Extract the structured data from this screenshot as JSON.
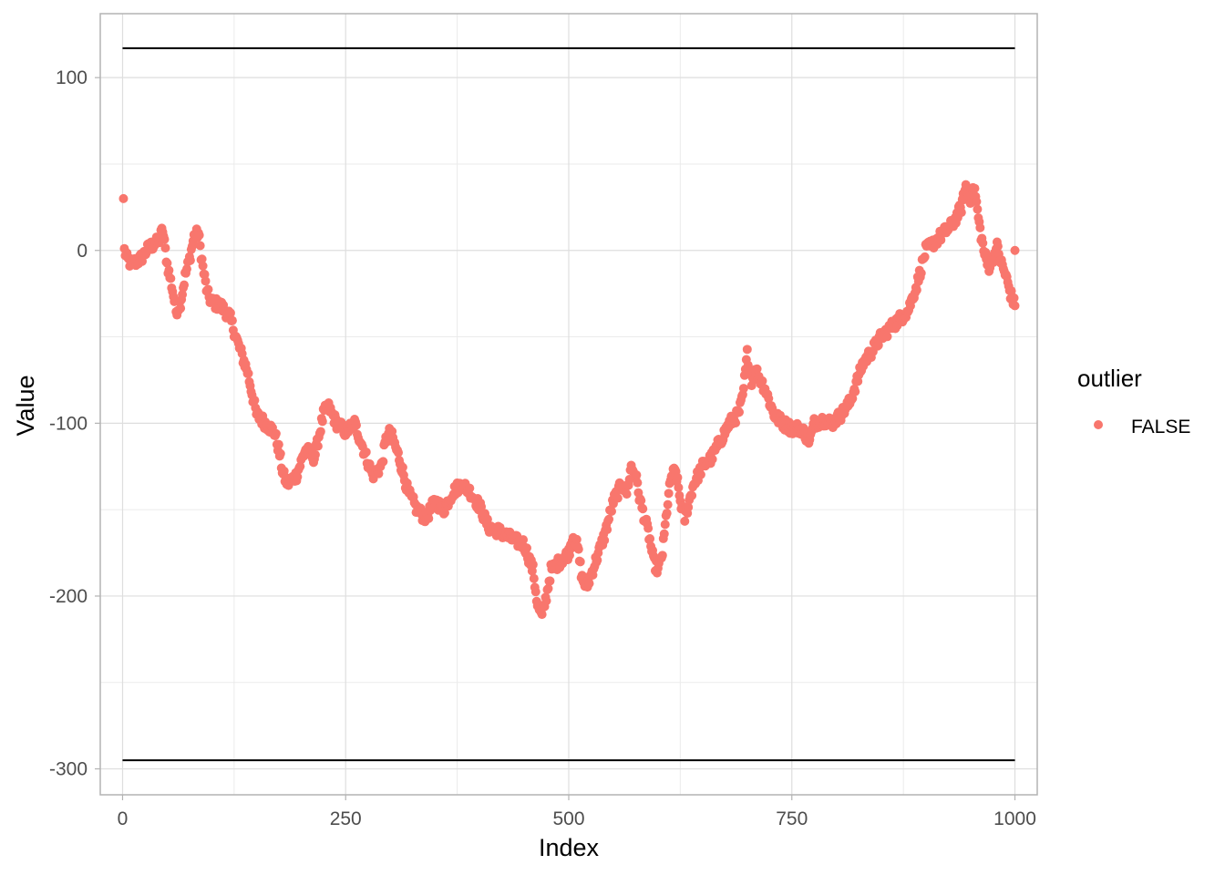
{
  "chart_data": {
    "type": "scatter",
    "xlabel": "Index",
    "ylabel": "Value",
    "xlim": [
      -25,
      1025
    ],
    "ylim": [
      -315,
      137
    ],
    "x_ticks": [
      0,
      250,
      500,
      750,
      1000
    ],
    "x_tick_labels": [
      "0",
      "250",
      "500",
      "750",
      "1000"
    ],
    "y_ticks": [
      -300,
      -200,
      -100,
      0,
      100
    ],
    "y_tick_labels": [
      "-300",
      "-200",
      "-100",
      "0",
      "100"
    ],
    "grid": true,
    "legend": {
      "title": "outlier",
      "position": "right",
      "entries": [
        {
          "label": "FALSE",
          "color": "#f8766d"
        }
      ]
    },
    "reference_lines": [
      {
        "y": 117,
        "x_range": [
          0,
          1000
        ],
        "color": "#000000"
      },
      {
        "y": -295,
        "x_range": [
          0,
          1000
        ],
        "color": "#000000"
      }
    ],
    "series": [
      {
        "name": "FALSE",
        "color": "#f8766d",
        "shape": "circle",
        "anchors": [
          [
            1,
            30
          ],
          [
            2,
            0
          ],
          [
            5,
            -5
          ],
          [
            10,
            -8
          ],
          [
            20,
            -5
          ],
          [
            30,
            2
          ],
          [
            40,
            5
          ],
          [
            45,
            12
          ],
          [
            50,
            -8
          ],
          [
            55,
            -20
          ],
          [
            60,
            -35
          ],
          [
            65,
            -30
          ],
          [
            70,
            -15
          ],
          [
            75,
            -5
          ],
          [
            80,
            8
          ],
          [
            85,
            10
          ],
          [
            90,
            -10
          ],
          [
            95,
            -25
          ],
          [
            100,
            -30
          ],
          [
            110,
            -32
          ],
          [
            120,
            -38
          ],
          [
            130,
            -55
          ],
          [
            140,
            -70
          ],
          [
            150,
            -95
          ],
          [
            160,
            -100
          ],
          [
            170,
            -105
          ],
          [
            175,
            -115
          ],
          [
            180,
            -130
          ],
          [
            185,
            -135
          ],
          [
            195,
            -130
          ],
          [
            205,
            -115
          ],
          [
            215,
            -120
          ],
          [
            225,
            -95
          ],
          [
            230,
            -90
          ],
          [
            240,
            -100
          ],
          [
            250,
            -105
          ],
          [
            260,
            -100
          ],
          [
            270,
            -115
          ],
          [
            280,
            -130
          ],
          [
            290,
            -125
          ],
          [
            295,
            -110
          ],
          [
            300,
            -105
          ],
          [
            310,
            -120
          ],
          [
            320,
            -140
          ],
          [
            330,
            -150
          ],
          [
            340,
            -155
          ],
          [
            350,
            -145
          ],
          [
            360,
            -150
          ],
          [
            370,
            -140
          ],
          [
            380,
            -135
          ],
          [
            390,
            -140
          ],
          [
            400,
            -148
          ],
          [
            410,
            -160
          ],
          [
            420,
            -162
          ],
          [
            430,
            -165
          ],
          [
            440,
            -168
          ],
          [
            450,
            -170
          ],
          [
            460,
            -185
          ],
          [
            465,
            -205
          ],
          [
            470,
            -212
          ],
          [
            475,
            -200
          ],
          [
            480,
            -185
          ],
          [
            490,
            -180
          ],
          [
            500,
            -175
          ],
          [
            505,
            -165
          ],
          [
            510,
            -172
          ],
          [
            515,
            -190
          ],
          [
            520,
            -195
          ],
          [
            530,
            -180
          ],
          [
            540,
            -165
          ],
          [
            550,
            -145
          ],
          [
            560,
            -135
          ],
          [
            565,
            -140
          ],
          [
            570,
            -125
          ],
          [
            575,
            -130
          ],
          [
            580,
            -145
          ],
          [
            585,
            -155
          ],
          [
            590,
            -165
          ],
          [
            595,
            -180
          ],
          [
            600,
            -185
          ],
          [
            605,
            -175
          ],
          [
            610,
            -150
          ],
          [
            615,
            -130
          ],
          [
            620,
            -128
          ],
          [
            625,
            -145
          ],
          [
            630,
            -155
          ],
          [
            640,
            -135
          ],
          [
            650,
            -125
          ],
          [
            660,
            -120
          ],
          [
            670,
            -110
          ],
          [
            680,
            -100
          ],
          [
            690,
            -95
          ],
          [
            695,
            -85
          ],
          [
            700,
            -60
          ],
          [
            705,
            -75
          ],
          [
            710,
            -70
          ],
          [
            720,
            -80
          ],
          [
            730,
            -95
          ],
          [
            740,
            -100
          ],
          [
            750,
            -103
          ],
          [
            760,
            -103
          ],
          [
            770,
            -110
          ],
          [
            775,
            -100
          ],
          [
            785,
            -98
          ],
          [
            795,
            -100
          ],
          [
            805,
            -95
          ],
          [
            815,
            -88
          ],
          [
            820,
            -80
          ],
          [
            830,
            -65
          ],
          [
            840,
            -58
          ],
          [
            850,
            -50
          ],
          [
            860,
            -45
          ],
          [
            870,
            -40
          ],
          [
            880,
            -35
          ],
          [
            890,
            -20
          ],
          [
            895,
            -10
          ],
          [
            900,
            0
          ],
          [
            910,
            5
          ],
          [
            920,
            10
          ],
          [
            930,
            15
          ],
          [
            940,
            25
          ],
          [
            945,
            37
          ],
          [
            950,
            30
          ],
          [
            955,
            35
          ],
          [
            960,
            15
          ],
          [
            965,
            0
          ],
          [
            970,
            -10
          ],
          [
            975,
            -5
          ],
          [
            980,
            2
          ],
          [
            985,
            -8
          ],
          [
            990,
            -15
          ],
          [
            995,
            -25
          ],
          [
            1000,
            -32
          ]
        ]
      }
    ]
  }
}
